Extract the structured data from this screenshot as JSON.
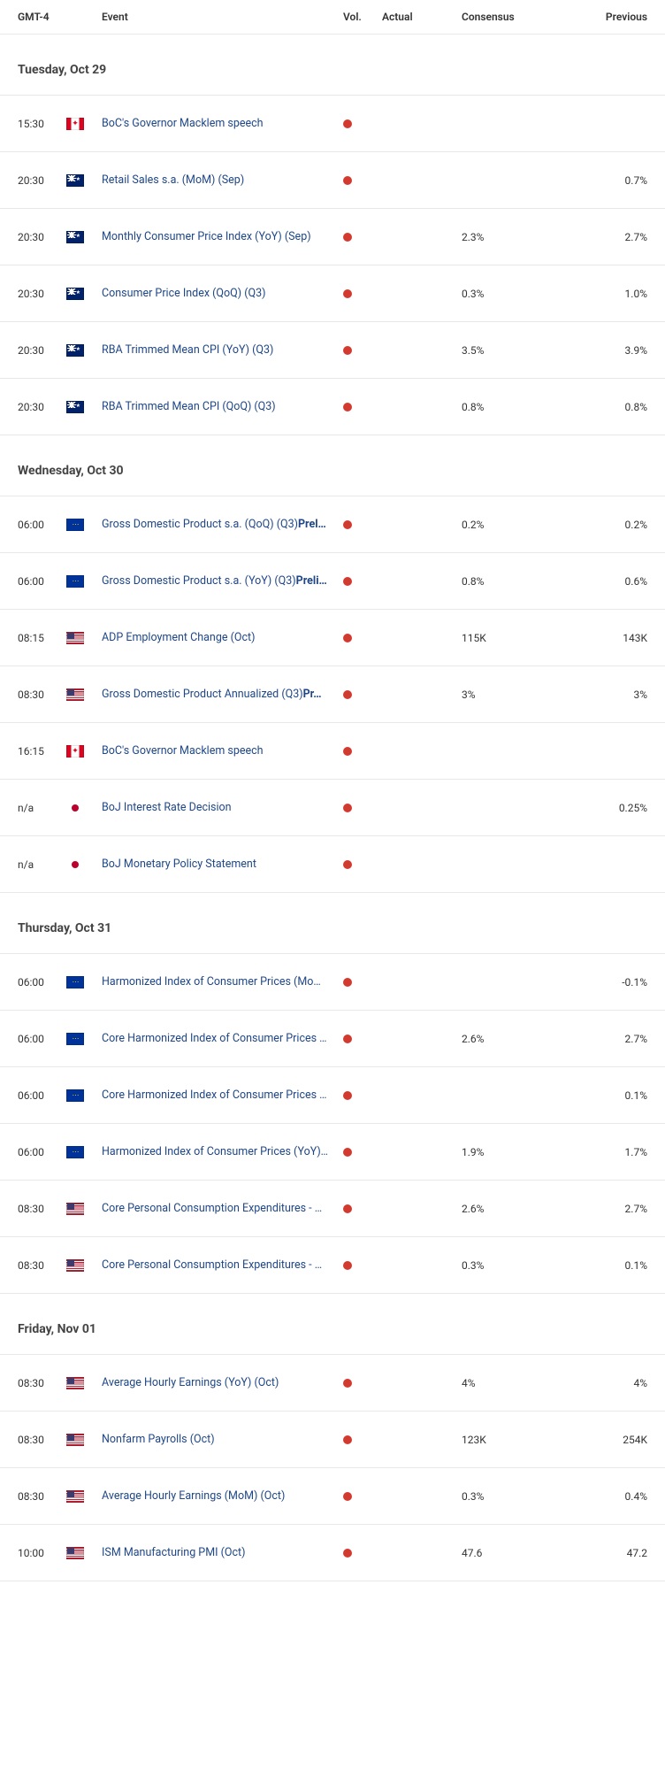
{
  "headers": {
    "time": "GMT-4",
    "event": "Event",
    "vol": "Vol.",
    "actual": "Actual",
    "consensus": "Consensus",
    "previous": "Previous"
  },
  "vol_dot_color": "#d33a2f",
  "days": [
    {
      "label": "Tuesday, Oct 29",
      "events": [
        {
          "time": "15:30",
          "flag": "ca",
          "event": "BoC's Governor Macklem speech",
          "actual": "",
          "consensus": "",
          "previous": ""
        },
        {
          "time": "20:30",
          "flag": "au",
          "event": "Retail Sales s.a. (MoM) (Sep)",
          "actual": "",
          "consensus": "",
          "previous": "0.7%"
        },
        {
          "time": "20:30",
          "flag": "au",
          "event": "Monthly Consumer Price Index (YoY) (Sep)",
          "actual": "",
          "consensus": "2.3%",
          "previous": "2.7%"
        },
        {
          "time": "20:30",
          "flag": "au",
          "event": "Consumer Price Index (QoQ) (Q3)",
          "actual": "",
          "consensus": "0.3%",
          "previous": "1.0%"
        },
        {
          "time": "20:30",
          "flag": "au",
          "event": "RBA Trimmed Mean CPI (YoY) (Q3)",
          "actual": "",
          "consensus": "3.5%",
          "previous": "3.9%"
        },
        {
          "time": "20:30",
          "flag": "au",
          "event": "RBA Trimmed Mean CPI (QoQ) (Q3)",
          "actual": "",
          "consensus": "0.8%",
          "previous": "0.8%"
        }
      ]
    },
    {
      "label": "Wednesday, Oct 30",
      "events": [
        {
          "time": "06:00",
          "flag": "eu",
          "event": "Gross Domestic Product s.a. (QoQ) (Q3)",
          "suffix": "Prel…",
          "actual": "",
          "consensus": "0.2%",
          "previous": "0.2%"
        },
        {
          "time": "06:00",
          "flag": "eu",
          "event": "Gross Domestic Product s.a. (YoY) (Q3)",
          "suffix": "Preli…",
          "actual": "",
          "consensus": "0.8%",
          "previous": "0.6%"
        },
        {
          "time": "08:15",
          "flag": "us",
          "event": "ADP Employment Change (Oct)",
          "actual": "",
          "consensus": "115K",
          "previous": "143K"
        },
        {
          "time": "08:30",
          "flag": "us",
          "event": "Gross Domestic Product Annualized (Q3)",
          "suffix": "Pr…",
          "actual": "",
          "consensus": "3%",
          "previous": "3%"
        },
        {
          "time": "16:15",
          "flag": "ca",
          "event": "BoC's Governor Macklem speech",
          "actual": "",
          "consensus": "",
          "previous": ""
        },
        {
          "time": "n/a",
          "flag": "jp",
          "event": "BoJ Interest Rate Decision",
          "actual": "",
          "consensus": "",
          "previous": "0.25%"
        },
        {
          "time": "n/a",
          "flag": "jp",
          "event": "BoJ Monetary Policy Statement",
          "actual": "",
          "consensus": "",
          "previous": ""
        }
      ]
    },
    {
      "label": "Thursday, Oct 31",
      "events": [
        {
          "time": "06:00",
          "flag": "eu",
          "event": "Harmonized Index of Consumer Prices (Mo…",
          "actual": "",
          "consensus": "",
          "previous": "-0.1%"
        },
        {
          "time": "06:00",
          "flag": "eu",
          "event": "Core Harmonized Index of Consumer Prices …",
          "actual": "",
          "consensus": "2.6%",
          "previous": "2.7%"
        },
        {
          "time": "06:00",
          "flag": "eu",
          "event": "Core Harmonized Index of Consumer Prices …",
          "actual": "",
          "consensus": "",
          "previous": "0.1%"
        },
        {
          "time": "06:00",
          "flag": "eu",
          "event": "Harmonized Index of Consumer Prices (YoY)…",
          "actual": "",
          "consensus": "1.9%",
          "previous": "1.7%"
        },
        {
          "time": "08:30",
          "flag": "us",
          "event": "Core Personal Consumption Expenditures - …",
          "actual": "",
          "consensus": "2.6%",
          "previous": "2.7%"
        },
        {
          "time": "08:30",
          "flag": "us",
          "event": "Core Personal Consumption Expenditures - …",
          "actual": "",
          "consensus": "0.3%",
          "previous": "0.1%"
        }
      ]
    },
    {
      "label": "Friday, Nov 01",
      "events": [
        {
          "time": "08:30",
          "flag": "us",
          "event": "Average Hourly Earnings (YoY) (Oct)",
          "actual": "",
          "consensus": "4%",
          "previous": "4%"
        },
        {
          "time": "08:30",
          "flag": "us",
          "event": "Nonfarm Payrolls (Oct)",
          "actual": "",
          "consensus": "123K",
          "previous": "254K"
        },
        {
          "time": "08:30",
          "flag": "us",
          "event": "Average Hourly Earnings (MoM) (Oct)",
          "actual": "",
          "consensus": "0.3%",
          "previous": "0.4%"
        },
        {
          "time": "10:00",
          "flag": "us",
          "event": "ISM Manufacturing PMI (Oct)",
          "actual": "",
          "consensus": "47.6",
          "previous": "47.2"
        }
      ]
    }
  ]
}
